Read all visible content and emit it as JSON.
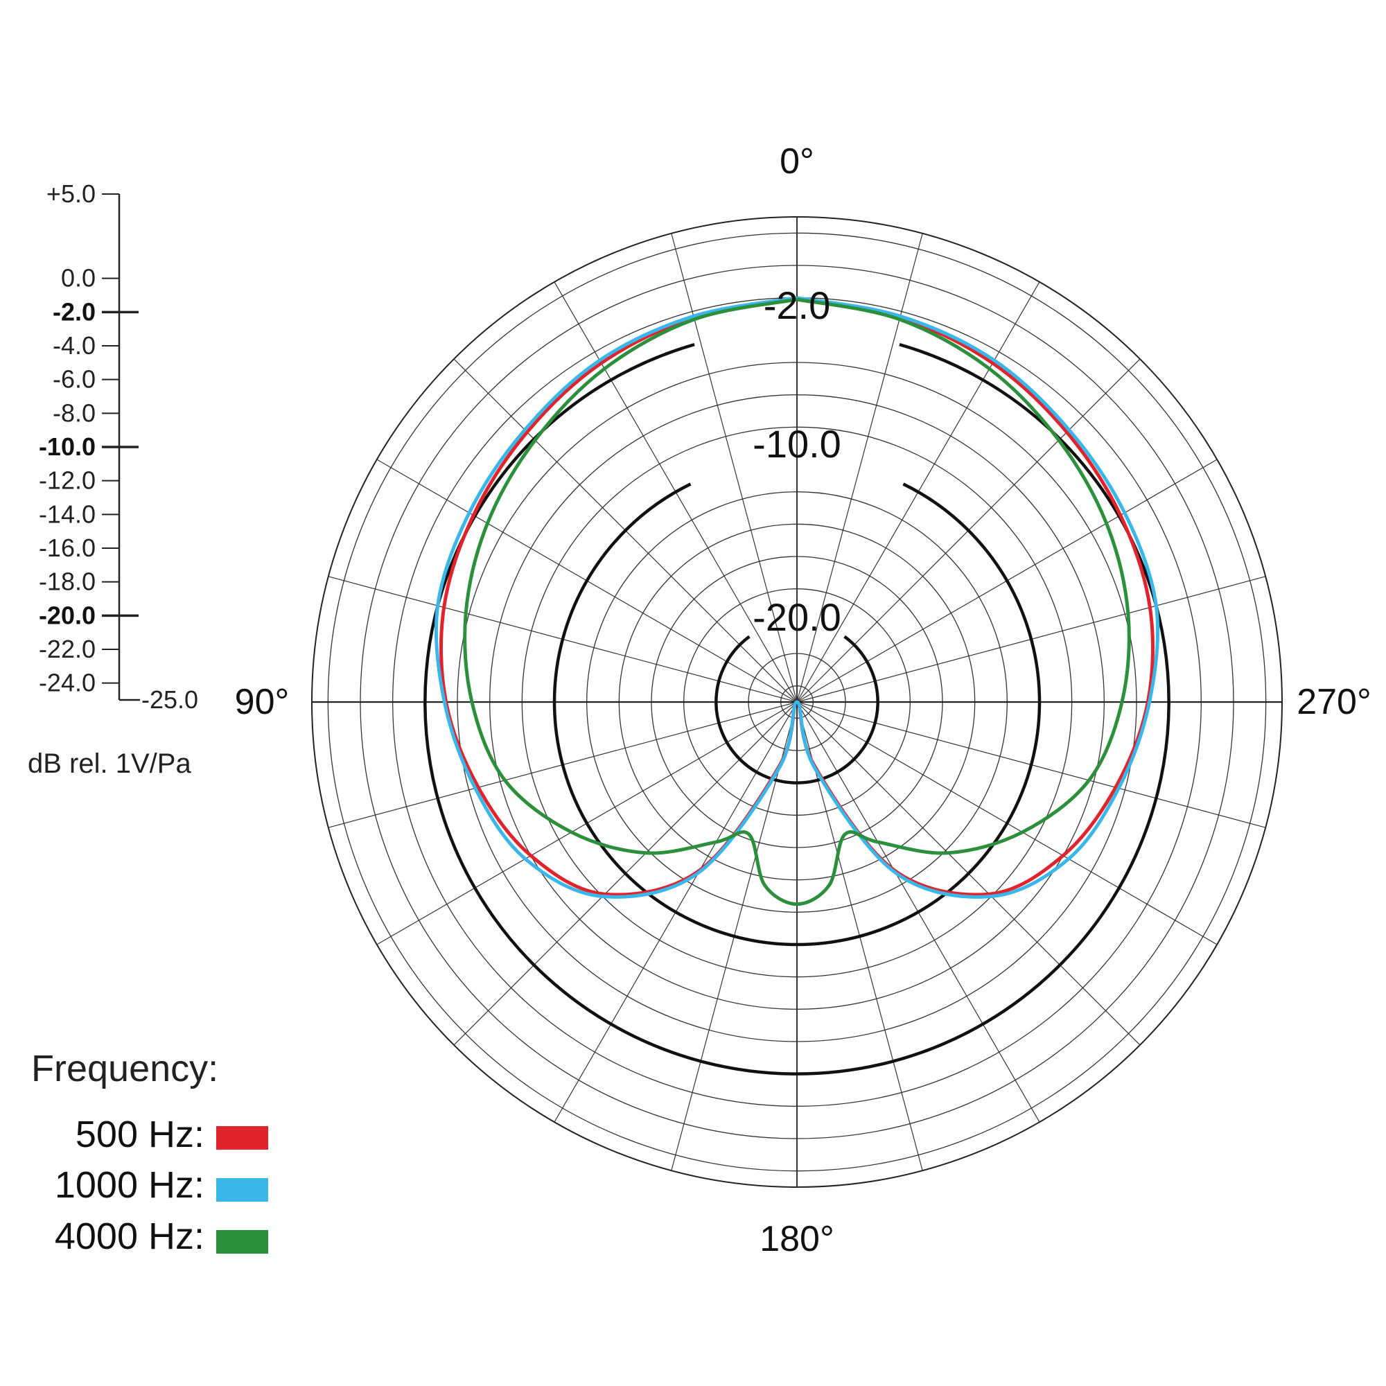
{
  "chart_data": {
    "type": "polar",
    "title": "",
    "angle_labels": [
      {
        "angle": 0,
        "label": "0°"
      },
      {
        "angle": 90,
        "label": "90°"
      },
      {
        "angle": 180,
        "label": "180°"
      },
      {
        "angle": 270,
        "label": "270°"
      }
    ],
    "rlim": [
      -25,
      5
    ],
    "ring_step": 2,
    "spoke_step_deg": 15,
    "bold_rings": [
      -2,
      -10,
      -20
    ],
    "ring_labels": [
      "-2.0",
      "-10.0",
      "-20.0"
    ],
    "scale_ticks": [
      {
        "value": 5,
        "label": "+5.0",
        "bold": false
      },
      {
        "value": 0,
        "label": "0.0",
        "bold": false
      },
      {
        "value": -2,
        "label": "-2.0",
        "bold": true
      },
      {
        "value": -4,
        "label": "-4.0",
        "bold": false
      },
      {
        "value": -6,
        "label": "-6.0",
        "bold": false
      },
      {
        "value": -8,
        "label": "-8.0",
        "bold": false
      },
      {
        "value": -10,
        "label": "-10.0",
        "bold": true
      },
      {
        "value": -12,
        "label": "-12.0",
        "bold": false
      },
      {
        "value": -14,
        "label": "-14.0",
        "bold": false
      },
      {
        "value": -16,
        "label": "-16.0",
        "bold": false
      },
      {
        "value": -18,
        "label": "-18.0",
        "bold": false
      },
      {
        "value": -20,
        "label": "-20.0",
        "bold": true
      },
      {
        "value": -22,
        "label": "-22.0",
        "bold": false
      },
      {
        "value": -24,
        "label": "-24.0",
        "bold": false
      },
      {
        "value": -25,
        "label": "-25.0",
        "bold": false
      }
    ],
    "unit_label": "dB rel. 1V/Pa",
    "legend_title": "Frequency:",
    "series": [
      {
        "name": "500 Hz:",
        "color": "#e0242e",
        "angles": [
          0,
          15,
          30,
          45,
          60,
          75,
          90,
          105,
          120,
          135,
          150,
          165,
          180,
          195,
          210,
          225,
          240,
          255,
          270,
          285,
          300,
          315,
          330,
          345,
          360
        ],
        "values": [
          -0.1,
          -0.4,
          -0.8,
          -1.4,
          -1.9,
          -2.4,
          -3.3,
          -4.6,
          -6.0,
          -8.2,
          -13.0,
          -21.0,
          -25.0,
          -21.0,
          -13.0,
          -8.2,
          -6.0,
          -4.6,
          -3.3,
          -2.4,
          -1.9,
          -1.4,
          -0.8,
          -0.4,
          -0.1
        ]
      },
      {
        "name": "1000 Hz:",
        "color": "#3bb6e8",
        "angles": [
          0,
          15,
          30,
          45,
          60,
          75,
          90,
          105,
          120,
          135,
          150,
          165,
          180,
          195,
          210,
          225,
          240,
          255,
          270,
          285,
          300,
          315,
          330,
          345,
          360
        ],
        "values": [
          0.0,
          -0.3,
          -0.6,
          -1.2,
          -1.6,
          -2.0,
          -3.2,
          -4.4,
          -5.6,
          -8.0,
          -12.8,
          -20.8,
          -25.0,
          -20.8,
          -12.8,
          -8.0,
          -5.6,
          -4.4,
          -3.2,
          -2.0,
          -1.6,
          -1.2,
          -0.6,
          -0.3,
          0.0
        ]
      },
      {
        "name": "4000 Hz:",
        "color": "#2b8f3c",
        "angles": [
          0,
          15,
          30,
          45,
          60,
          75,
          90,
          105,
          120,
          135,
          150,
          160,
          170,
          180,
          190,
          200,
          210,
          225,
          240,
          255,
          270,
          285,
          300,
          315,
          330,
          345,
          360
        ],
        "values": [
          -0.1,
          -0.5,
          -1.2,
          -2.1,
          -2.9,
          -3.8,
          -4.9,
          -6.3,
          -8.9,
          -11.8,
          -15.0,
          -16.3,
          -13.5,
          -12.5,
          -13.5,
          -16.3,
          -15.0,
          -11.8,
          -8.9,
          -6.3,
          -4.9,
          -3.8,
          -2.9,
          -2.1,
          -1.2,
          -0.5,
          -0.1
        ]
      }
    ]
  }
}
